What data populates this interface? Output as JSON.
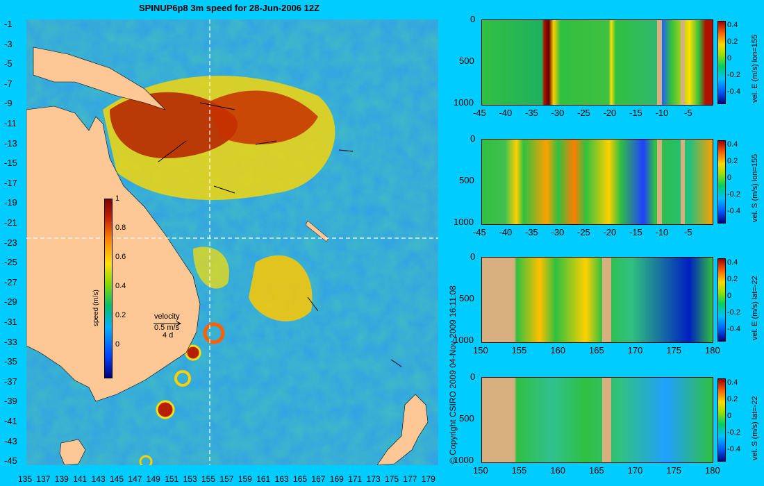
{
  "title": "SPINUP6p8 3m speed for 28-Jun-2006 12Z",
  "map": {
    "lat_ticks": [
      "-1",
      "-3",
      "-5",
      "-7",
      "-9",
      "-11",
      "-13",
      "-15",
      "-17",
      "-19",
      "-21",
      "-23",
      "-25",
      "-27",
      "-29",
      "-31",
      "-33",
      "-35",
      "-37",
      "-39",
      "-41",
      "-43",
      "-45"
    ],
    "lon_ticks": [
      "135",
      "137",
      "139",
      "141",
      "143",
      "145",
      "147",
      "149",
      "151",
      "153",
      "155",
      "157",
      "159",
      "161",
      "163",
      "165",
      "167",
      "169",
      "171",
      "173",
      "175",
      "177",
      "179"
    ],
    "colorbar": {
      "label": "speed (m/s)",
      "ticks": [
        "1",
        "0.8",
        "0.6",
        "0.4",
        "0.2",
        "0"
      ]
    },
    "velocity_key": {
      "title": "velocity",
      "speed": "0.5 m/s",
      "duration": "4 d"
    },
    "colors": {
      "land": "#fdc896",
      "ocean_base": "#2fa0e8",
      "section_line": "#ffffff"
    }
  },
  "copyright": "© Copyright CSIRO 2009   04-Nov-2009 16:11:08",
  "panels": [
    {
      "label": "vel. E (m/s) lon=155",
      "x_ticks": [
        "-45",
        "-40",
        "-35",
        "-30",
        "-25",
        "-20",
        "-15",
        "-10",
        "-5"
      ],
      "y_ticks": [
        "0",
        "500",
        "1000"
      ],
      "cbar_ticks": [
        "0.4",
        "0.2",
        "0",
        "-0.2",
        "-0.4"
      ]
    },
    {
      "label": "vel. S (m/s) lon=155",
      "x_ticks": [
        "-45",
        "-40",
        "-35",
        "-30",
        "-25",
        "-20",
        "-15",
        "-10",
        "-5"
      ],
      "y_ticks": [
        "0",
        "500",
        "1000"
      ],
      "cbar_ticks": [
        "0.4",
        "0.2",
        "0",
        "-0.2",
        "-0.4"
      ]
    },
    {
      "label": "vel. E (m/s) lat=-22",
      "x_ticks": [
        "150",
        "155",
        "160",
        "165",
        "170",
        "175",
        "180"
      ],
      "y_ticks": [
        "0",
        "500",
        "1000"
      ],
      "cbar_ticks": [
        "0.4",
        "0.2",
        "0",
        "-0.2",
        "-0.4"
      ]
    },
    {
      "label": "vel. S (m/s) lat=-22",
      "x_ticks": [
        "150",
        "155",
        "160",
        "165",
        "170",
        "175",
        "180"
      ],
      "y_ticks": [
        "0",
        "500",
        "1000"
      ],
      "cbar_ticks": [
        "0.4",
        "0.2",
        "0",
        "-0.2",
        "-0.4"
      ]
    }
  ]
}
